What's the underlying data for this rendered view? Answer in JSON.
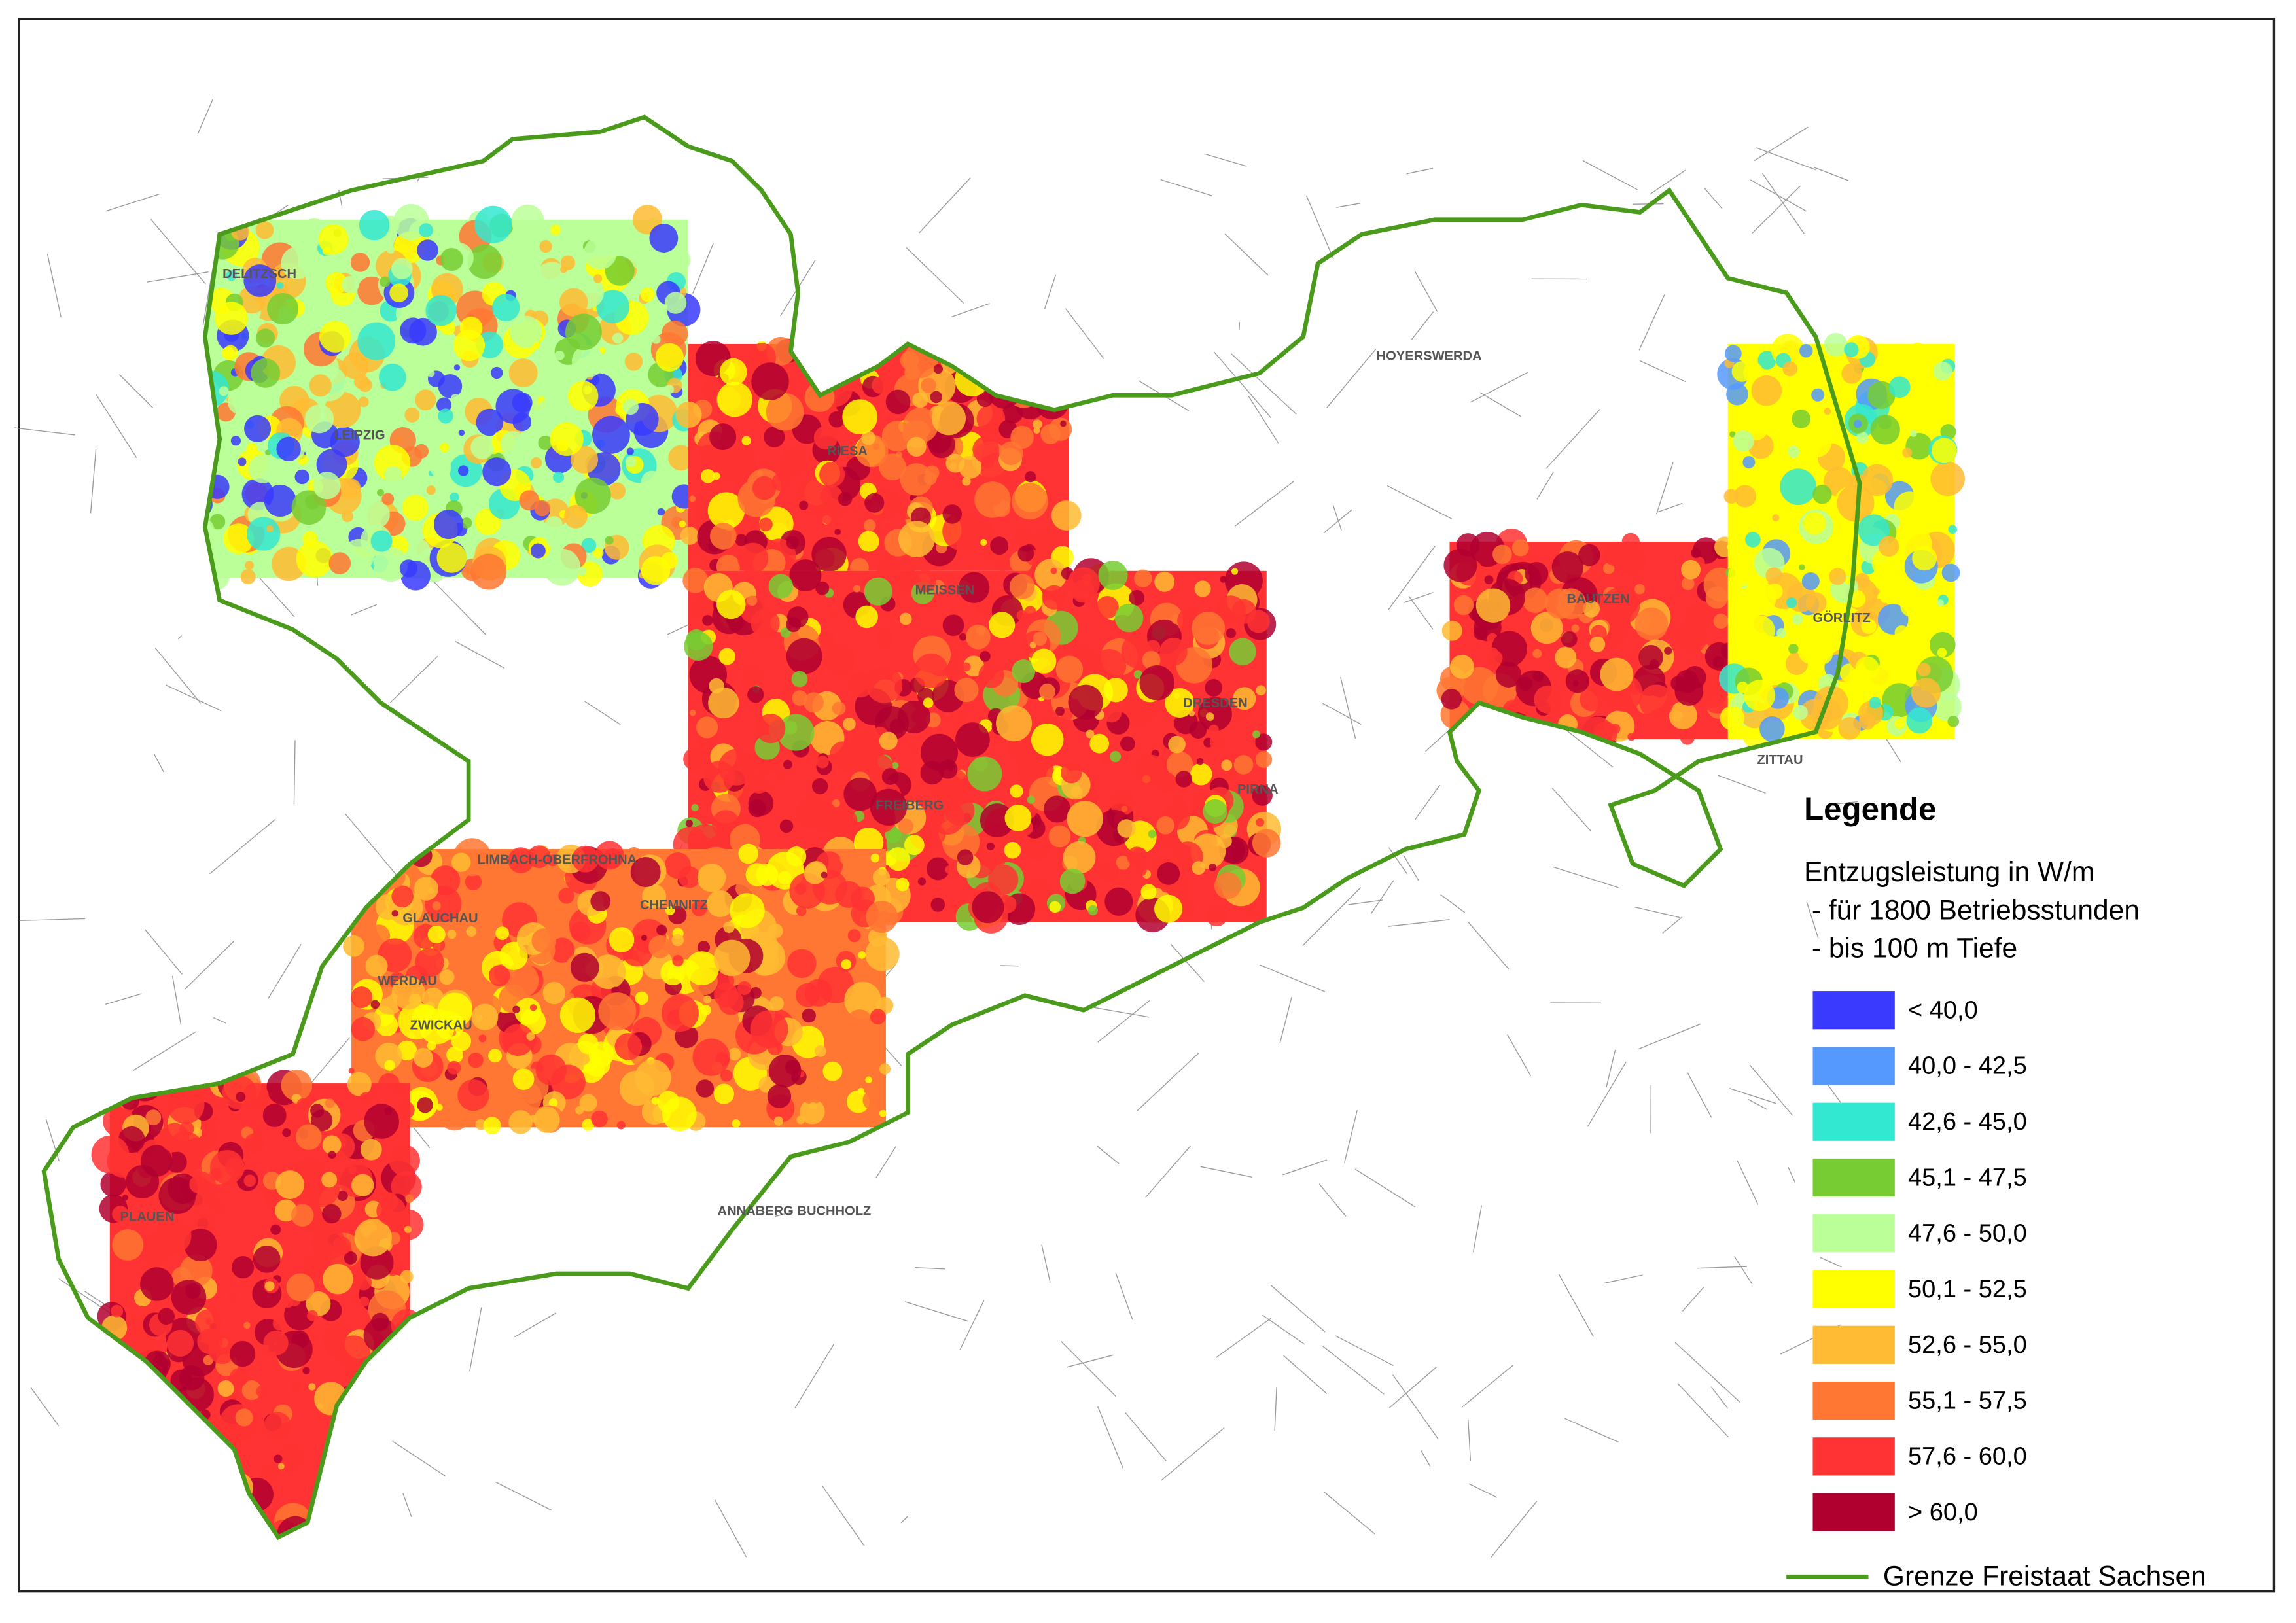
{
  "legend": {
    "title": "Legende",
    "subtitle": "Entzugsleistung in W/m",
    "notes": [
      " - für 1800 Betriebsstunden",
      " - bis 100 m Tiefe"
    ],
    "items": [
      {
        "label": "< 40,0",
        "color": "#3a3aff"
      },
      {
        "label": "40,0 - 42,5",
        "color": "#5599ff"
      },
      {
        "label": "42,6 - 45,0",
        "color": "#33e8d0"
      },
      {
        "label": "45,1 - 47,5",
        "color": "#77cc33"
      },
      {
        "label": "47,6 - 50,0",
        "color": "#bbff99"
      },
      {
        "label": "50,1 - 52,5",
        "color": "#ffff00"
      },
      {
        "label": "52,6 - 55,0",
        "color": "#ffbb33"
      },
      {
        "label": "55,1 - 57,5",
        "color": "#ff7733"
      },
      {
        "label": "57,6 - 60,0",
        "color": "#ff3333"
      },
      {
        "label": "> 60,0",
        "color": "#b00030"
      }
    ],
    "border": {
      "label": "Grenze Freistaat Sachsen",
      "color": "#4a9a1c"
    }
  },
  "places": [
    {
      "label": "LEIPZIG"
    },
    {
      "label": "DELITZSCH"
    },
    {
      "label": "DRESDEN"
    },
    {
      "label": "CHEMNITZ"
    },
    {
      "label": "ZWICKAU"
    },
    {
      "label": "PLAUEN"
    },
    {
      "label": "BAUTZEN"
    },
    {
      "label": "GÖRLITZ"
    },
    {
      "label": "HOYERSWERDA"
    },
    {
      "label": "ZITTAU"
    },
    {
      "label": "MEISSEN"
    },
    {
      "label": "PIRNA"
    },
    {
      "label": "RIESA"
    },
    {
      "label": "FREIBERG"
    },
    {
      "label": "GLAUCHAU"
    },
    {
      "label": "WERDAU"
    },
    {
      "label": "ANNABERG BUCHHOLZ"
    },
    {
      "label": "LIMBACH-OBERFROHNA"
    }
  ]
}
